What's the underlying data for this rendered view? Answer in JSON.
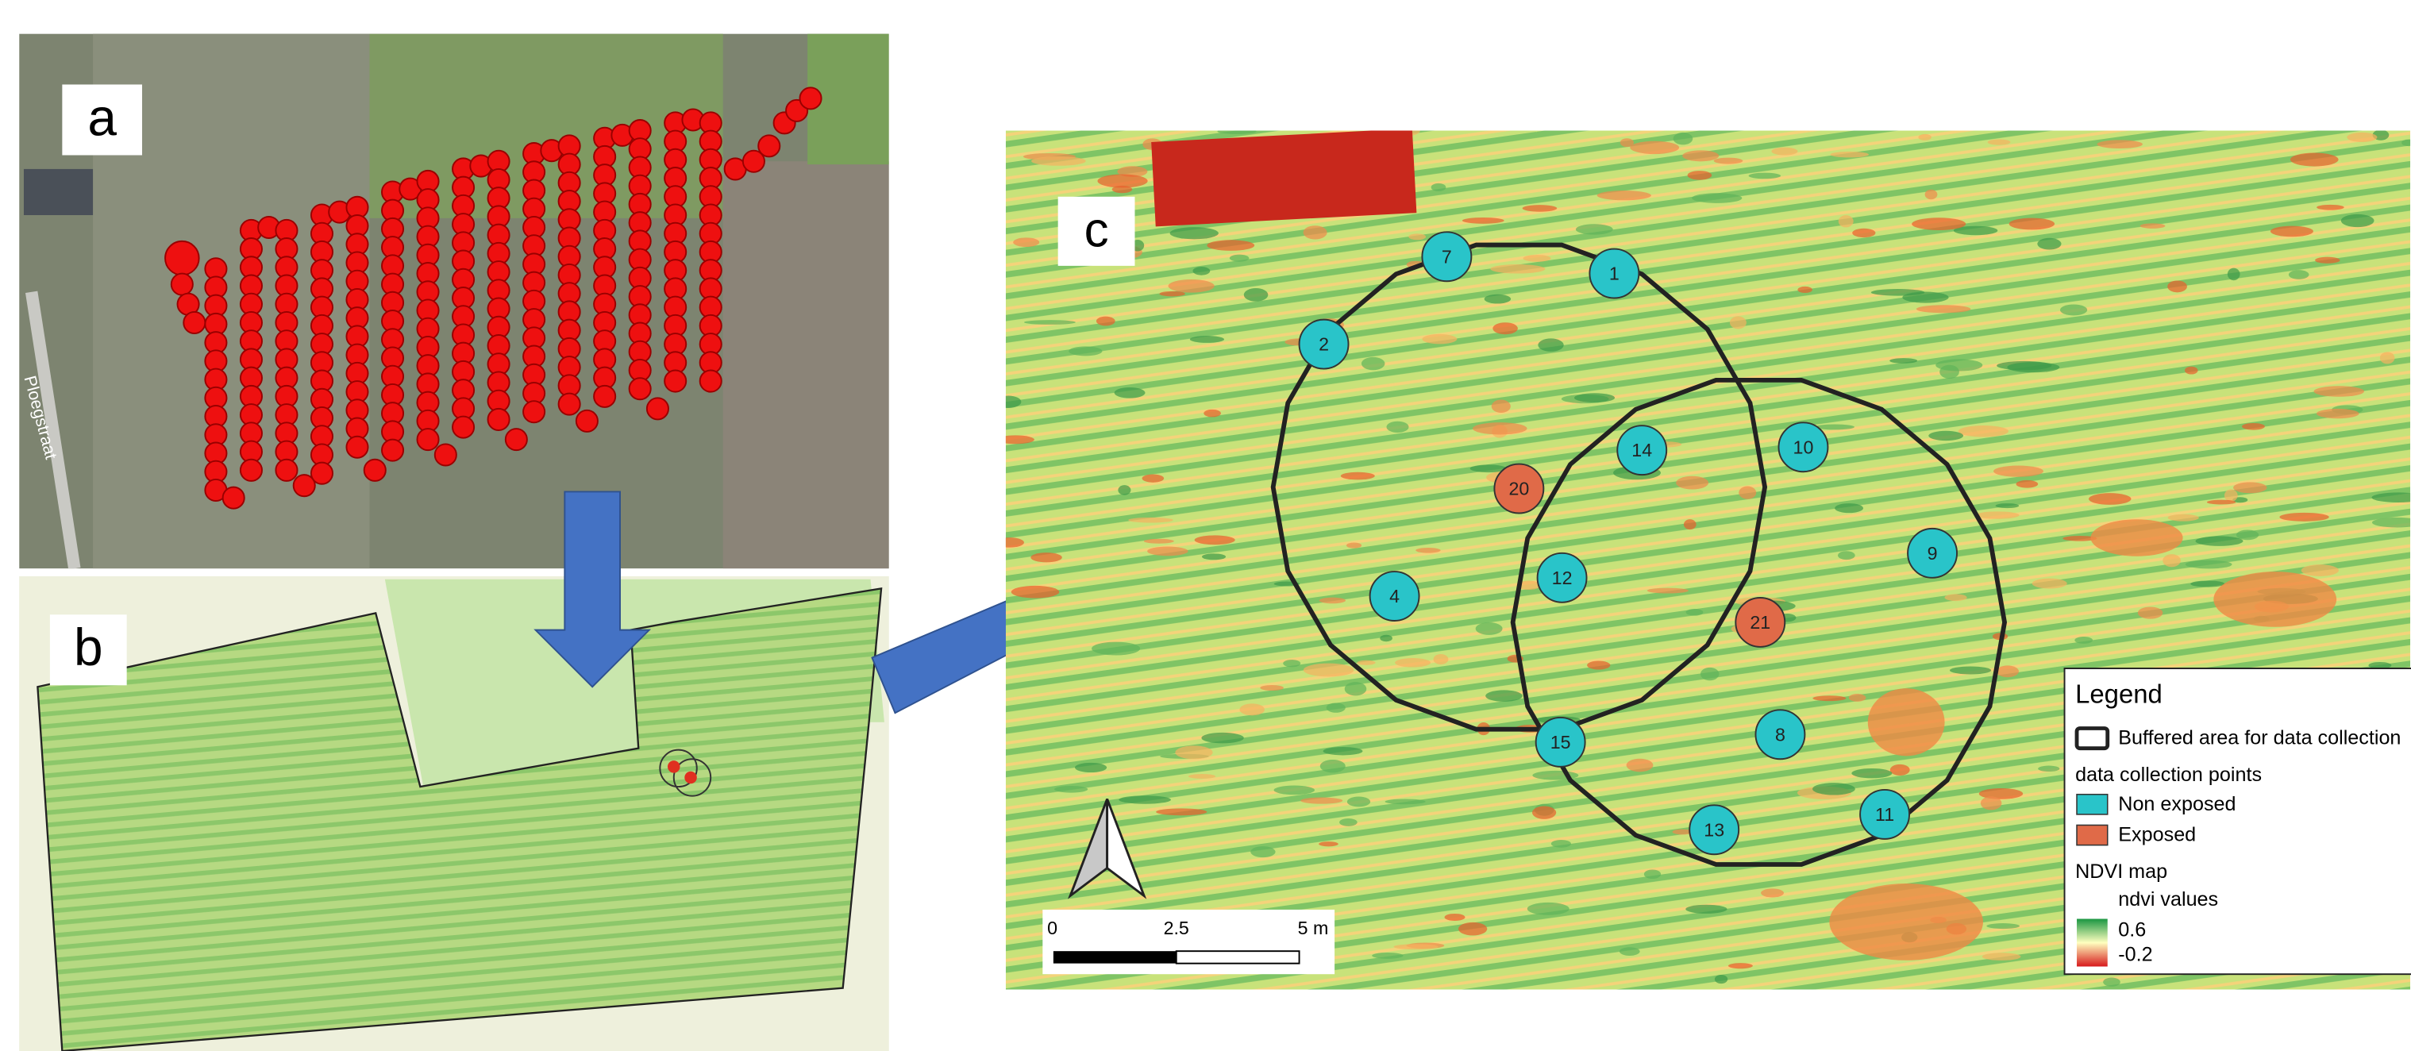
{
  "panels": {
    "a": "a",
    "b": "b",
    "c": "c"
  },
  "road_label": "Ploegstraat",
  "points": {
    "non_exposed": [
      "1",
      "2",
      "4",
      "7",
      "8",
      "9",
      "10",
      "11",
      "12",
      "13",
      "14",
      "15"
    ],
    "exposed": [
      "20",
      "21"
    ]
  },
  "scale_bar": [
    "0",
    "2.5",
    "5 m"
  ],
  "legend": {
    "title": "Legend",
    "buffer": "Buffered area for data collection",
    "points_heading": "data collection points",
    "non_exposed": "Non exposed",
    "exposed": "Exposed",
    "ndvi_heading": "NDVI map",
    "ndvi_sub": "ndvi values",
    "ndvi_max": "0.6",
    "ndvi_min": "-0.2"
  }
}
